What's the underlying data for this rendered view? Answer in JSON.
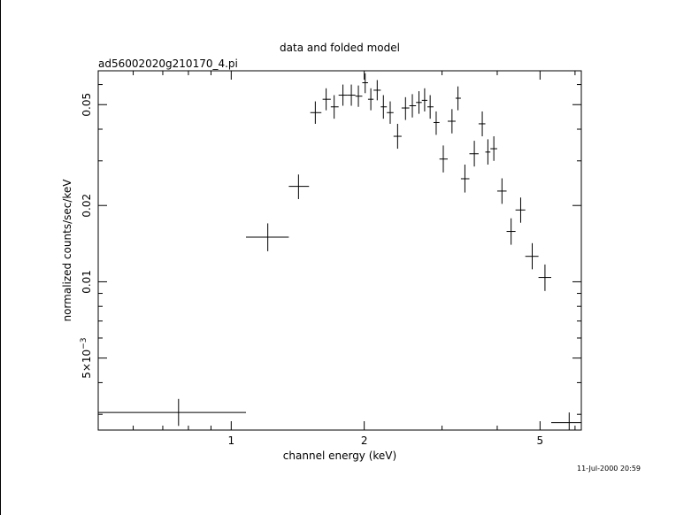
{
  "chart_data": {
    "type": "scatter",
    "title": "data and folded model",
    "subtitle": "ad56002020g210170_4.pi",
    "xlabel": "channel energy (keV)",
    "ylabel": "normalized counts/sec/keV",
    "timestamp": "11-Jul-2000 20:59",
    "x_scale": "log",
    "y_scale": "log",
    "xlim": [
      0.5,
      6.2
    ],
    "ylim": [
      0.0026,
      0.068
    ],
    "x_ticks": [
      {
        "value": 1,
        "label": "1"
      },
      {
        "value": 2,
        "label": "2"
      },
      {
        "value": 5,
        "label": "5"
      }
    ],
    "y_ticks": [
      {
        "value": 0.005,
        "label": "5×10",
        "exp": "−3"
      },
      {
        "value": 0.01,
        "label": "0.01"
      },
      {
        "value": 0.02,
        "label": "0.02"
      },
      {
        "value": 0.05,
        "label": "0.05"
      }
    ],
    "grid": false,
    "points": [
      {
        "x": 0.76,
        "xlo": 0.5,
        "xhi": 1.08,
        "y": 0.00305,
        "ylo": 0.0027,
        "yhi": 0.00345
      },
      {
        "x": 1.21,
        "xlo": 1.08,
        "xhi": 1.35,
        "y": 0.015,
        "ylo": 0.0132,
        "yhi": 0.017
      },
      {
        "x": 1.42,
        "xlo": 1.35,
        "xhi": 1.5,
        "y": 0.0238,
        "ylo": 0.0212,
        "yhi": 0.0265
      },
      {
        "x": 1.55,
        "xlo": 1.51,
        "xhi": 1.6,
        "y": 0.0465,
        "ylo": 0.042,
        "yhi": 0.0515
      },
      {
        "x": 1.64,
        "xlo": 1.61,
        "xhi": 1.68,
        "y": 0.0525,
        "ylo": 0.0475,
        "yhi": 0.058
      },
      {
        "x": 1.71,
        "xlo": 1.68,
        "xhi": 1.75,
        "y": 0.049,
        "ylo": 0.044,
        "yhi": 0.0545
      },
      {
        "x": 1.79,
        "xlo": 1.75,
        "xhi": 1.83,
        "y": 0.0545,
        "ylo": 0.0495,
        "yhi": 0.06
      },
      {
        "x": 1.87,
        "xlo": 1.83,
        "xhi": 1.91,
        "y": 0.0545,
        "ylo": 0.0495,
        "yhi": 0.06
      },
      {
        "x": 1.94,
        "xlo": 1.91,
        "xhi": 1.98,
        "y": 0.054,
        "ylo": 0.049,
        "yhi": 0.0595
      },
      {
        "x": 2.01,
        "xlo": 1.98,
        "xhi": 2.04,
        "y": 0.061,
        "ylo": 0.0555,
        "yhi": 0.0665
      },
      {
        "x": 2.07,
        "xlo": 2.04,
        "xhi": 2.1,
        "y": 0.0525,
        "ylo": 0.0475,
        "yhi": 0.058
      },
      {
        "x": 2.14,
        "xlo": 2.1,
        "xhi": 2.18,
        "y": 0.057,
        "ylo": 0.052,
        "yhi": 0.0625
      },
      {
        "x": 2.21,
        "xlo": 2.18,
        "xhi": 2.25,
        "y": 0.049,
        "ylo": 0.044,
        "yhi": 0.0545
      },
      {
        "x": 2.29,
        "xlo": 2.25,
        "xhi": 2.33,
        "y": 0.0465,
        "ylo": 0.042,
        "yhi": 0.0515
      },
      {
        "x": 2.38,
        "xlo": 2.33,
        "xhi": 2.43,
        "y": 0.0375,
        "ylo": 0.0335,
        "yhi": 0.042
      },
      {
        "x": 2.48,
        "xlo": 2.43,
        "xhi": 2.53,
        "y": 0.0485,
        "ylo": 0.0435,
        "yhi": 0.0535
      },
      {
        "x": 2.57,
        "xlo": 2.53,
        "xhi": 2.62,
        "y": 0.0495,
        "ylo": 0.0445,
        "yhi": 0.055
      },
      {
        "x": 2.66,
        "xlo": 2.62,
        "xhi": 2.7,
        "y": 0.051,
        "ylo": 0.046,
        "yhi": 0.0565
      },
      {
        "x": 2.74,
        "xlo": 2.7,
        "xhi": 2.78,
        "y": 0.052,
        "ylo": 0.047,
        "yhi": 0.058
      },
      {
        "x": 2.82,
        "xlo": 2.78,
        "xhi": 2.87,
        "y": 0.049,
        "ylo": 0.044,
        "yhi": 0.0545
      },
      {
        "x": 2.91,
        "xlo": 2.87,
        "xhi": 2.96,
        "y": 0.0425,
        "ylo": 0.038,
        "yhi": 0.047
      },
      {
        "x": 3.02,
        "xlo": 2.96,
        "xhi": 3.09,
        "y": 0.0305,
        "ylo": 0.027,
        "yhi": 0.0345
      },
      {
        "x": 3.16,
        "xlo": 3.09,
        "xhi": 3.22,
        "y": 0.043,
        "ylo": 0.0385,
        "yhi": 0.048
      },
      {
        "x": 3.26,
        "xlo": 3.22,
        "xhi": 3.31,
        "y": 0.053,
        "ylo": 0.0475,
        "yhi": 0.059
      },
      {
        "x": 3.38,
        "xlo": 3.31,
        "xhi": 3.46,
        "y": 0.0255,
        "ylo": 0.0225,
        "yhi": 0.029
      },
      {
        "x": 3.55,
        "xlo": 3.46,
        "xhi": 3.63,
        "y": 0.032,
        "ylo": 0.0285,
        "yhi": 0.036
      },
      {
        "x": 3.7,
        "xlo": 3.63,
        "xhi": 3.76,
        "y": 0.042,
        "ylo": 0.0375,
        "yhi": 0.047
      },
      {
        "x": 3.81,
        "xlo": 3.76,
        "xhi": 3.86,
        "y": 0.0325,
        "ylo": 0.029,
        "yhi": 0.0365
      },
      {
        "x": 3.93,
        "xlo": 3.86,
        "xhi": 4.0,
        "y": 0.0335,
        "ylo": 0.03,
        "yhi": 0.0375
      },
      {
        "x": 4.1,
        "xlo": 4.0,
        "xhi": 4.2,
        "y": 0.0228,
        "ylo": 0.0203,
        "yhi": 0.0256
      },
      {
        "x": 4.3,
        "xlo": 4.2,
        "xhi": 4.4,
        "y": 0.0158,
        "ylo": 0.014,
        "yhi": 0.0178
      },
      {
        "x": 4.52,
        "xlo": 4.4,
        "xhi": 4.63,
        "y": 0.0192,
        "ylo": 0.0171,
        "yhi": 0.0215
      },
      {
        "x": 4.8,
        "xlo": 4.63,
        "xhi": 4.96,
        "y": 0.0126,
        "ylo": 0.0112,
        "yhi": 0.0142
      },
      {
        "x": 5.13,
        "xlo": 4.96,
        "xhi": 5.3,
        "y": 0.0104,
        "ylo": 0.0092,
        "yhi": 0.0117
      },
      {
        "x": 5.82,
        "xlo": 5.3,
        "xhi": 6.2,
        "y": 0.00278,
        "ylo": 0.0026,
        "yhi": 0.00305
      }
    ]
  }
}
